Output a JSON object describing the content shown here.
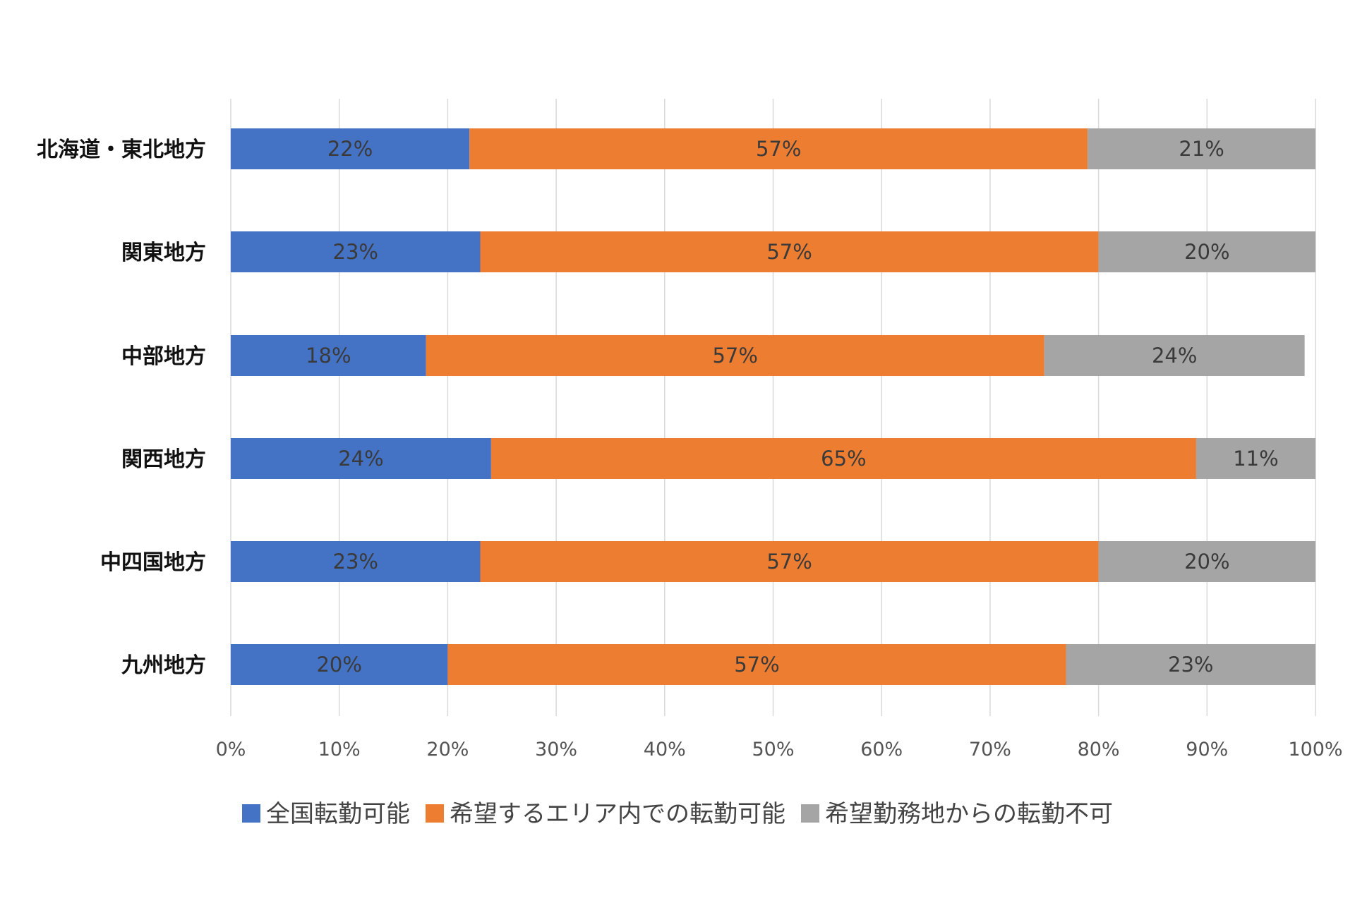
{
  "chart_data": {
    "type": "bar",
    "orientation": "horizontal",
    "stacked": true,
    "categories": [
      "北海道・東北地方",
      "関東地方",
      "中部地方",
      "関西地方",
      "中四国地方",
      "九州地方"
    ],
    "series": [
      {
        "name": "全国転勤可能",
        "color": "#4472C4",
        "values": [
          22,
          23,
          18,
          24,
          23,
          20
        ]
      },
      {
        "name": "希望するエリア内での転勤可能",
        "color": "#ED7D31",
        "values": [
          57,
          57,
          57,
          65,
          57,
          57
        ]
      },
      {
        "name": "希望勤務地からの転勤不可",
        "color": "#A5A5A5",
        "values": [
          21,
          20,
          24,
          11,
          20,
          23
        ]
      }
    ],
    "data_labels": [
      [
        "22%",
        "23%",
        "18%",
        "24%",
        "23%",
        "20%"
      ],
      [
        "57%",
        "57%",
        "57%",
        "65%",
        "57%",
        "57%"
      ],
      [
        "21%",
        "20%",
        "24%",
        "11%",
        "20%",
        "23%"
      ]
    ],
    "x_ticks": [
      "0%",
      "10%",
      "20%",
      "30%",
      "40%",
      "50%",
      "60%",
      "70%",
      "80%",
      "90%",
      "100%"
    ],
    "xlim": [
      0,
      100
    ],
    "grid": true,
    "legend_position": "bottom",
    "title": "",
    "xlabel": "",
    "ylabel": ""
  }
}
